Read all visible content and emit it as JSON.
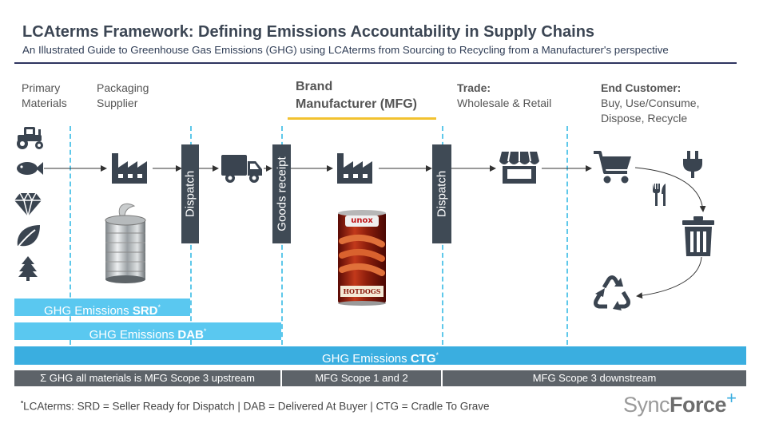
{
  "title": "LCAterms Framework: Defining Emissions Accountability in Supply Chains",
  "subtitle": "An Illustrated Guide to Greenhouse Gas Emissions (GHG) using LCAterms from Sourcing to Recycling from a Manufacturer's perspective",
  "stages": {
    "primary_line1": "Primary",
    "primary_line2": "Materials",
    "packaging_line1": "Packaging",
    "packaging_line2": "Supplier",
    "brand_line1": "Brand",
    "brand_line2": "Manufacturer (MFG)",
    "trade_line1": "Trade:",
    "trade_line2": "Wholesale & Retail",
    "end_line1": "End Customer:",
    "end_line2": "Buy, Use/Consume,",
    "end_line3": "Dispose, Recycle"
  },
  "bars": {
    "dispatch1": "Dispatch",
    "goods_receipt": "Goods receipt",
    "dispatch2": "Dispatch"
  },
  "products": {
    "can_brand": "unox",
    "can_label": "HOTDOGS"
  },
  "ghg": {
    "prefix": "GHG Emissions",
    "srd": "SRD",
    "dab": "DAB",
    "ctg": "CTG",
    "star": "*"
  },
  "scopes": {
    "upstream": "Σ GHG all materials is MFG Scope 3 upstream",
    "scope12": "MFG Scope 1 and 2",
    "downstream": "MFG Scope 3 downstream"
  },
  "footnote": {
    "star": "*",
    "text": "LCAterms: SRD = Seller Ready for Dispatch | DAB = Delivered At Buyer | CTG = Cradle To Grave"
  },
  "logo": {
    "sync": "Sync",
    "force": "Force",
    "plus": "+"
  },
  "colors": {
    "accent": "#5ac8f0",
    "dark": "#3f4a55",
    "scope_bar": "#5d6369",
    "highlight": "#f2c230"
  },
  "icons": [
    "tractor-icon",
    "fish-icon",
    "gem-icon",
    "leaf-icon",
    "tree-icon",
    "factory-icon",
    "tin-can-image",
    "truck-icon",
    "hotdog-can-image",
    "store-icon",
    "cart-icon",
    "plug-icon",
    "cutlery-icon",
    "trash-icon",
    "recycle-icon"
  ]
}
